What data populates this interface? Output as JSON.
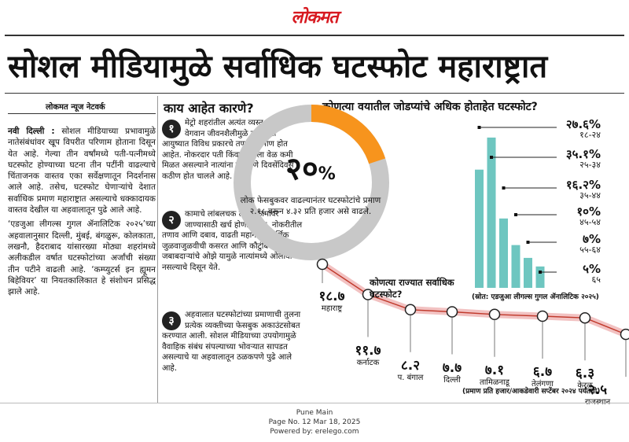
{
  "masthead": "लोकमत",
  "headline": "सोशल मीडियामुळे सर्वाधिक घटस्फोट महाराष्ट्रात",
  "byline": "लोकमत न्यूज नेटवर्क",
  "article": {
    "dateline": "नवी दिल्ली :",
    "p1": "सोशल मीडियाच्या प्रभावामुळे नातेसंबंधांवर खूप विपरीत परिणाम होताना दिसून येत आहे. गेल्या तीन वर्षांमध्ये पती-पत्नीमध्ये घटस्फोट होण्याच्या घटना तीन पटींनी वाढल्याचे चिंताजनक वास्तव एका सर्वेक्षणातून निदर्शनास आले आहे. तसेच, घटस्फोट घेणाऱ्यांचे देशात सर्वाधिक प्रमाण महाराष्ट्रात असल्याचे धक्कादायक वास्तव देखील या अहवालातून पुढे आले आहे.",
    "p2": "‘एडजुआ लीगल्स गुगल ॲनालिटिक २०२५’च्या अहवालानुसार दिल्ली, मुंबई, बंगळुरू, कोलकाता, लखनौ, हैदराबाद यांसारख्या मोठ्या शहरांमध्ये अलीकडील वर्षात घटस्फोटांच्या अर्जांची संख्या तीन पटीने वाढली आहे. ‘कम्प्युटर्स इन ह्यूमन बिहेवियर’ या नियतकालिकात हे संशोधन प्रसिद्ध झाले आहे."
  },
  "reasons": {
    "title": "काय आहेत कारणे?",
    "items": [
      {
        "num": "१",
        "text": "मेट्रो शहरांतील अत्यंत व्यस्त आणि वेगवान जीवनशैलीमुळे लोकांच्या आयुष्यात विविध प्रकारचे तणाव निर्माण होत आहेत. नोकरदार पती किंवा पत्नीला वेळ कमी मिळत असल्याने नात्यांना वेळ देणे दिवसेंदिवस कठीण होत चालले आहे."
      },
      {
        "num": "२",
        "text": "कामाचे लांबलचक तास, कामावर जाण्यासाठी खर्च होणारा वेळ, नोकरीतील तणाव आणि दबाव, वाढती महागाई, आर्थिक जुळवाजुळवीची कसरत आणि कौटुंबिक जबाबदाऱ्यांचे ओझे यामुळे नात्यांमध्ये ओलावा नसल्याचे दिसून येते."
      },
      {
        "num": "३",
        "text": "अहवालात घटस्फोटांच्या प्रमाणाची तुलना प्रत्येक व्यक्तीच्या फेसबुक अकाउंटसोबत करण्यात आली. सोशल मीडियाच्या उपयोगामुळे वैवाहिक संबंध संपल्याच्या भोवऱ्यात सापडत असल्याचे या अहवालातून ठळकपणे पुढे आले आहे."
      }
    ]
  },
  "age_chart": {
    "title": "कोणत्या वयातील जोडप्यांचे अधिक होताहेत घटस्फोट?",
    "donut": {
      "value_text": "२०",
      "unit": "%",
      "percent": 20,
      "desc": "लोक फेसबुकवर वाढल्यानंतर घटस्फोटांचे प्रमाण २.१८ वरून ४.३२ प्रति हजार असे वाढले.",
      "color_filled": "#f7941d",
      "color_track": "#c8c8c8"
    },
    "bar_color": "#6ec6c0",
    "source": "(स्रोत: एडजुआ लीगल्स गुगल ॲनालिटिक २०२५)"
  },
  "chart_data": [
    {
      "type": "bar",
      "title": "कोणत्या वयातील जोडप्यांचे अधिक होताहेत घटस्फोट?",
      "categories": [
        "१८-२४",
        "२५-३४",
        "३५-४४",
        "४५-५४",
        "५५-६४",
        "६५"
      ],
      "values": [
        27.6,
        35.1,
        16.2,
        10,
        7,
        5
      ],
      "value_labels": [
        "२७.६%",
        "३५.१%",
        "१६.२%",
        "१०%",
        "७%",
        "५%"
      ],
      "ylim": [
        0,
        36
      ]
    },
    {
      "type": "line",
      "title": "कोणत्या राज्यात सर्वाधिक घटस्फोट?",
      "categories": [
        "महाराष्ट्र",
        "कर्नाटक",
        "प. बंगाल",
        "दिल्ली",
        "तामिळनाडू",
        "तेलंगणा",
        "केरळ",
        "राजस्थान"
      ],
      "values": [
        18.7,
        11.7,
        8.2,
        7.7,
        7.1,
        6.7,
        6.3,
        2.5
      ],
      "value_labels": [
        "१८.७",
        "११.७",
        "८.२",
        "७.७",
        "७.१",
        "६.७",
        "६.३",
        "२.५"
      ],
      "note": "(प्रमाण प्रति हजार/आकडेवारी सप्टेंबर २०२४ पर्यंतची)"
    }
  ],
  "footer": {
    "line1": "Pune Main",
    "line2": "Page No. 12  Mar 18, 2025",
    "line3": "Powered by: erelego.com"
  }
}
